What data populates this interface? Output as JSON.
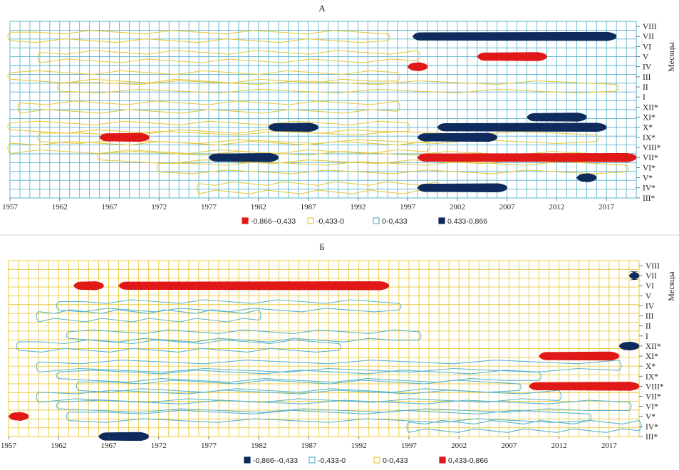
{
  "chart_data": [
    {
      "type": "heatmap",
      "title": "А",
      "x_ticks": [
        "1957",
        "1962",
        "1967",
        "1972",
        "1977",
        "1982",
        "1987",
        "1992",
        "1997",
        "2002",
        "2007",
        "2012",
        "2017"
      ],
      "x_range": [
        1957,
        2020
      ],
      "y_label": "Месяцы",
      "y_ticks": [
        "VIII",
        "VII",
        "VI",
        "V",
        "IV",
        "III",
        "II",
        "I",
        "XII*",
        "XI*",
        "X*",
        "IX*",
        "VIII*",
        "VII*",
        "VI*",
        "V*",
        "IV*",
        "III*"
      ],
      "grid": true,
      "colors": {
        "grid": "#5bb5cf",
        "yellow": "#e8c93f",
        "red": "#e01818",
        "navy": "#0f2a5c"
      },
      "legend": [
        {
          "label": "-0,866--0,433",
          "color": "#e01818",
          "fill": "solid"
        },
        {
          "label": "-0,433-0",
          "color": "#e8c93f",
          "fill": "outline"
        },
        {
          "label": "0-0,433",
          "color": "#5bb5cf",
          "fill": "outline"
        },
        {
          "label": "0,433-0,866",
          "color": "#0f2a5c",
          "fill": "solid"
        }
      ],
      "legend_position": "bottom",
      "regions": [
        {
          "class": "0,433-0,866",
          "row": "VII",
          "x": [
            1997.5,
            2018
          ]
        },
        {
          "class": "-0,866--0,433",
          "row": "V",
          "x": [
            2004,
            2011
          ]
        },
        {
          "class": "-0,866--0,433",
          "row": "IV",
          "x": [
            1997,
            1999
          ]
        },
        {
          "class": "0,433-0,866",
          "row": "XI*",
          "x": [
            2009,
            2015
          ]
        },
        {
          "class": "0,433-0,866",
          "row": "X*",
          "x": [
            2000,
            2017
          ]
        },
        {
          "class": "0,433-0,866",
          "row": "IX*",
          "x": [
            1998,
            2006
          ]
        },
        {
          "class": "-0,866--0,433",
          "row": "IX*",
          "x": [
            1966,
            1971
          ]
        },
        {
          "class": "-0,866--0,433",
          "row": "VII*",
          "x": [
            1998,
            2020
          ]
        },
        {
          "class": "0,433-0,866",
          "row": "VII*",
          "x": [
            1977,
            1984
          ]
        },
        {
          "class": "0,433-0,866",
          "row": "X*",
          "x": [
            1983,
            1988
          ]
        },
        {
          "class": "0,433-0,866",
          "row": "V*",
          "x": [
            2014,
            2016
          ]
        },
        {
          "class": "0,433-0,866",
          "row": "IV*",
          "x": [
            1998,
            2007
          ]
        }
      ]
    },
    {
      "type": "heatmap",
      "title": "Б",
      "x_ticks": [
        "1957",
        "1962",
        "1967",
        "1972",
        "1977",
        "1982",
        "1987",
        "1992",
        "1997",
        "2002",
        "2007",
        "2012",
        "2017"
      ],
      "x_range": [
        1957,
        2020
      ],
      "y_label": "Месяцы",
      "y_ticks": [
        "VIII",
        "VII",
        "VI",
        "V",
        "IV",
        "III",
        "II",
        "I",
        "XII*",
        "XI*",
        "X*",
        "IX*",
        "VIII*",
        "VII*",
        "VI*",
        "V*",
        "IV*",
        "III*"
      ],
      "grid": true,
      "colors": {
        "grid": "#e8c93f",
        "blue": "#5bb5cf",
        "red": "#e01818",
        "navy": "#0f2a5c"
      },
      "legend": [
        {
          "label": "-0,866--0,433",
          "color": "#0f2a5c",
          "fill": "solid"
        },
        {
          "label": "-0,433-0",
          "color": "#5bb5cf",
          "fill": "outline"
        },
        {
          "label": "0-0,433",
          "color": "#e8c93f",
          "fill": "outline"
        },
        {
          "label": "0,433-0,866",
          "color": "#e01818",
          "fill": "solid"
        }
      ],
      "legend_position": "bottom",
      "regions": [
        {
          "class": "0,433-0,866",
          "row": "VI",
          "x": [
            1968,
            1995
          ]
        },
        {
          "class": "0,433-0,866",
          "row": "VI",
          "x": [
            1963.5,
            1966.5
          ]
        },
        {
          "class": "0,433-0,866",
          "row": "VIII*",
          "x": [
            2009,
            2020
          ]
        },
        {
          "class": "0,433-0,866",
          "row": "XI*",
          "x": [
            2010,
            2018
          ]
        },
        {
          "class": "0,433-0,866",
          "row": "V*",
          "x": [
            1957,
            1959
          ]
        },
        {
          "class": "-0,866--0,433",
          "row": "XII*",
          "x": [
            2018,
            2020
          ]
        },
        {
          "class": "-0,866--0,433",
          "row": "VII",
          "x": [
            2019,
            2020
          ]
        },
        {
          "class": "-0,866--0,433",
          "row": "III*",
          "x": [
            1966,
            1971
          ]
        }
      ]
    }
  ]
}
